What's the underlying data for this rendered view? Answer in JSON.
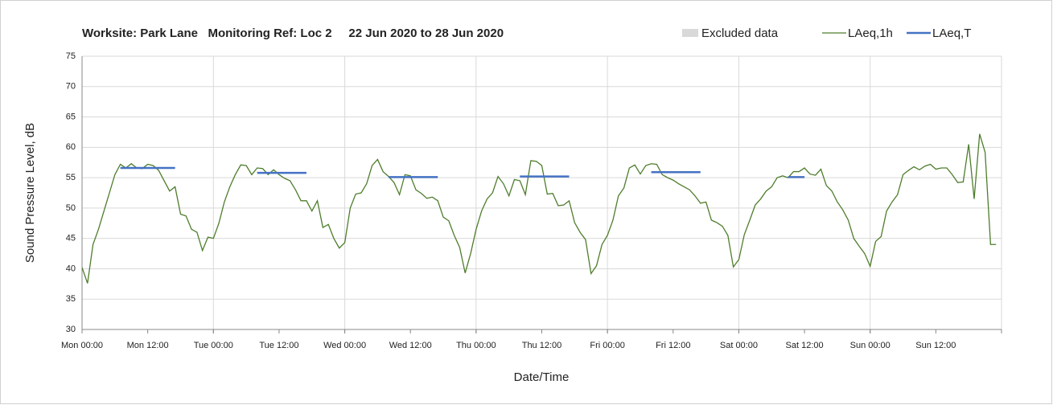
{
  "chart_data": {
    "type": "line",
    "title": "Worksite: Park Lane   Monitoring Ref: Loc 2     22 Jun 2020 to 28 Jun 2020",
    "x_label": "Date/Time",
    "y_label": "Sound Pressure Level, dB",
    "x": [
      0,
      1,
      2,
      3,
      4,
      5,
      6,
      7,
      8,
      9,
      10,
      11,
      12,
      13,
      14,
      15,
      16,
      17,
      18,
      19,
      20,
      21,
      22,
      23,
      24,
      25,
      26,
      27,
      28,
      29,
      30,
      31,
      32,
      33,
      34,
      35,
      36,
      37,
      38,
      39,
      40,
      41,
      42,
      43,
      44,
      45,
      46,
      47,
      48,
      49,
      50,
      51,
      52,
      53,
      54,
      55,
      56,
      57,
      58,
      59,
      60,
      61,
      62,
      63,
      64,
      65,
      66,
      67,
      68,
      69,
      70,
      71,
      72,
      73,
      74,
      75,
      76,
      77,
      78,
      79,
      80,
      81,
      82,
      83,
      84,
      85,
      86,
      87,
      88,
      89,
      90,
      91,
      92,
      93,
      94,
      95,
      96,
      97,
      98,
      99,
      100,
      101,
      102,
      103,
      104,
      105,
      106,
      107,
      108,
      109,
      110,
      111,
      112,
      113,
      114,
      115,
      116,
      117,
      118,
      119,
      120,
      121,
      122,
      123,
      124,
      125,
      126,
      127,
      128,
      129,
      130,
      131,
      132,
      133,
      134,
      135,
      136,
      137,
      138,
      139,
      140,
      141,
      142,
      143,
      144,
      145,
      146,
      147,
      148,
      149,
      150,
      151,
      152,
      153,
      154,
      155,
      156,
      157,
      158,
      159,
      160,
      161,
      162,
      163,
      164,
      165,
      166,
      167
    ],
    "series": [
      {
        "name": "LAeq,1h",
        "color": "#4e7d2c",
        "values": [
          40.2,
          37.6,
          44,
          46.5,
          49.5,
          52.5,
          55.5,
          57.2,
          56.6,
          57.3,
          56.6,
          56.5,
          57.2,
          57,
          56.2,
          54.5,
          52.8,
          53.5,
          49,
          48.7,
          46.5,
          46,
          43,
          45.2,
          45,
          47.5,
          51,
          53.5,
          55.5,
          57.1,
          57,
          55.5,
          56.6,
          56.5,
          55.5,
          56.3,
          55.5,
          54.9,
          54.5,
          53,
          51.2,
          51.2,
          49.5,
          51.2,
          46.8,
          47.3,
          45,
          43.4,
          44.3,
          50,
          52.3,
          52.5,
          54,
          57,
          58,
          56,
          55.2,
          54.2,
          52.2,
          55.5,
          55.3,
          53,
          52.4,
          51.6,
          51.8,
          51.2,
          48.5,
          47.9,
          45.5,
          43.5,
          39.3,
          42.5,
          46.5,
          49.5,
          51.5,
          52.5,
          55.2,
          54,
          52,
          54.7,
          54.5,
          52.2,
          57.8,
          57.7,
          57,
          52.3,
          52.4,
          50.4,
          50.5,
          51.2,
          47.6,
          46,
          44.8,
          39.2,
          40.5,
          44,
          45.5,
          48,
          52,
          53.3,
          56.6,
          57.1,
          55.6,
          57,
          57.3,
          57.2,
          55.5,
          55,
          54.6,
          54,
          53.5,
          53,
          52,
          50.8,
          51,
          48,
          47.6,
          47,
          45.5,
          40.3,
          41.5,
          45.6,
          48,
          50.5,
          51.5,
          52.8,
          53.5,
          55,
          55.3,
          55,
          56,
          56,
          56.6,
          55.6,
          55.4,
          56.4,
          53.7,
          52.8,
          51,
          49.7,
          48,
          45,
          43.7,
          42.5,
          40.4,
          44.5,
          45.3,
          49.5,
          51,
          52.2,
          55.5,
          56.2,
          56.8,
          56.3,
          56.9,
          57.2,
          56.4,
          56.6,
          56.6,
          55.5,
          54.2,
          54.3,
          60.5,
          51.5,
          62.2,
          59.2,
          44,
          44
        ]
      },
      {
        "name": "LAeq,T",
        "color": "#4472c4",
        "values": [
          null,
          null,
          null,
          null,
          null,
          null,
          null,
          56.6,
          56.6,
          56.6,
          56.6,
          56.6,
          56.6,
          56.6,
          56.6,
          56.6,
          56.6,
          56.6,
          null,
          null,
          null,
          null,
          null,
          null,
          null,
          null,
          null,
          null,
          null,
          null,
          null,
          null,
          55.8,
          55.8,
          55.8,
          55.8,
          55.8,
          55.8,
          55.8,
          55.8,
          55.8,
          55.8,
          null,
          null,
          null,
          null,
          null,
          null,
          null,
          null,
          null,
          null,
          null,
          null,
          null,
          null,
          55.1,
          55.1,
          55.1,
          55.1,
          55.1,
          55.1,
          55.1,
          55.1,
          55.1,
          55.1,
          null,
          null,
          null,
          null,
          null,
          null,
          null,
          null,
          null,
          null,
          null,
          null,
          null,
          null,
          55.2,
          55.2,
          55.2,
          55.2,
          55.2,
          55.2,
          55.2,
          55.2,
          55.2,
          55.2,
          null,
          null,
          null,
          null,
          null,
          null,
          null,
          null,
          null,
          null,
          null,
          null,
          null,
          null,
          55.9,
          55.9,
          55.9,
          55.9,
          55.9,
          55.9,
          55.9,
          55.9,
          55.9,
          55.9,
          null,
          null,
          null,
          null,
          null,
          null,
          null,
          null,
          null,
          null,
          null,
          null,
          null,
          null,
          null,
          55.1,
          55.1,
          55.1,
          55.1,
          null,
          null,
          null,
          null,
          null,
          null,
          null,
          null,
          null,
          null,
          null,
          null,
          null,
          null,
          null,
          null,
          null,
          null,
          null,
          null,
          null,
          null,
          null,
          null,
          null,
          null,
          null,
          null,
          null,
          null,
          null,
          null,
          null,
          null,
          null
        ]
      }
    ],
    "excluded": {
      "name": "Excluded data",
      "color": "#d9d9d9"
    },
    "xlim": [
      0,
      168
    ],
    "xticks": [
      {
        "value": 0,
        "label": "Mon 00:00"
      },
      {
        "value": 12,
        "label": "Mon 12:00"
      },
      {
        "value": 24,
        "label": "Tue 00:00"
      },
      {
        "value": 36,
        "label": "Tue 12:00"
      },
      {
        "value": 48,
        "label": "Wed 00:00"
      },
      {
        "value": 60,
        "label": "Wed 12:00"
      },
      {
        "value": 72,
        "label": "Thu 00:00"
      },
      {
        "value": 84,
        "label": "Thu 12:00"
      },
      {
        "value": 96,
        "label": "Fri 00:00"
      },
      {
        "value": 108,
        "label": "Fri 12:00"
      },
      {
        "value": 120,
        "label": "Sat 00:00"
      },
      {
        "value": 132,
        "label": "Sat 12:00"
      },
      {
        "value": 144,
        "label": "Sun 00:00"
      },
      {
        "value": 156,
        "label": "Sun 12:00"
      }
    ],
    "xgrid": [
      0,
      24,
      48,
      72,
      96,
      120,
      144,
      168
    ],
    "ylim": [
      30,
      75
    ],
    "yticks": [
      30,
      35,
      40,
      45,
      50,
      55,
      60,
      65,
      70,
      75
    ],
    "grid": true
  }
}
